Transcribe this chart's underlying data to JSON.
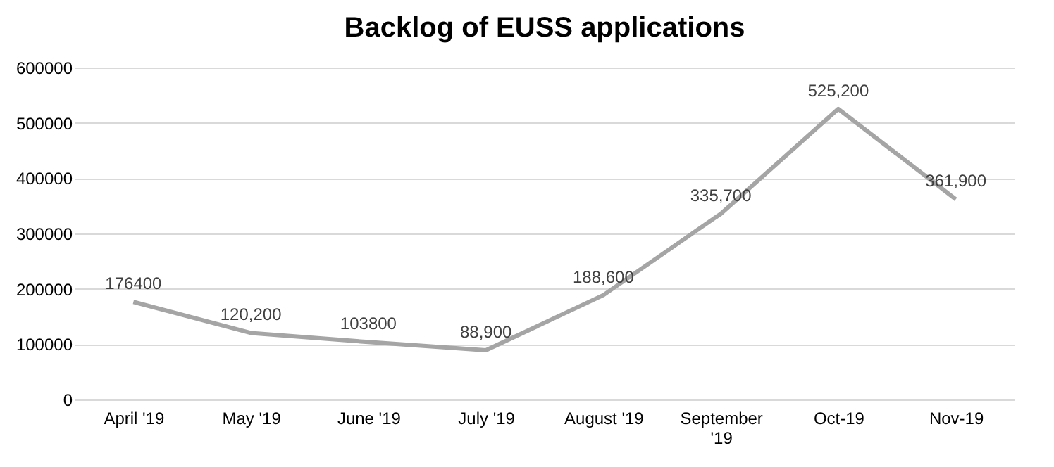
{
  "chart_data": {
    "type": "line",
    "title": "Backlog of EUSS applications",
    "categories": [
      "April '19",
      "May '19",
      "June '19",
      "July '19",
      "August '19",
      "September '19",
      "Oct-19",
      "Nov-19"
    ],
    "series": [
      {
        "color": "#a5a5a5",
        "values": [
          176400,
          120200,
          103800,
          88900,
          188600,
          335700,
          525200,
          361900
        ],
        "value_labels": [
          "176400",
          "120,200",
          "103800",
          "88,900",
          "188,600",
          "335,700",
          "525,200",
          "361,900"
        ]
      }
    ],
    "ylim": [
      0,
      600000
    ],
    "yticks": [
      0,
      100000,
      200000,
      300000,
      400000,
      500000,
      600000
    ],
    "grid": "y",
    "marker": "none",
    "line_style": "solid"
  }
}
